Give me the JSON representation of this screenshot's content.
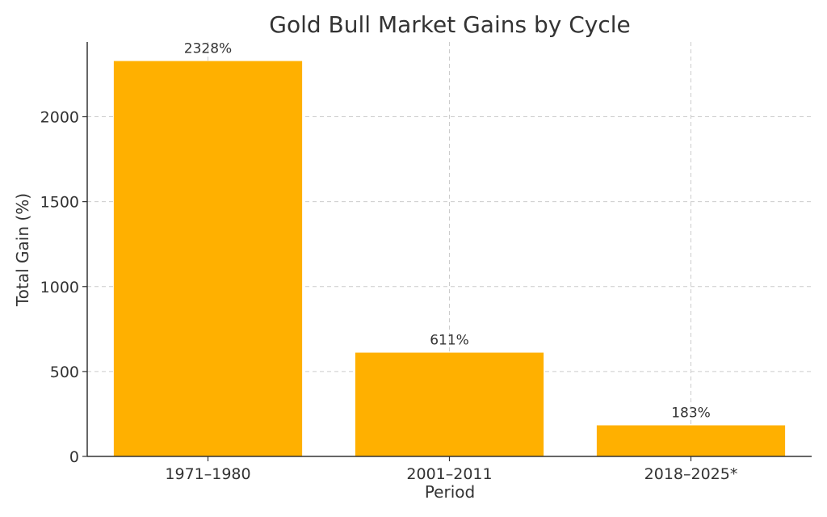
{
  "chart_data": {
    "type": "bar",
    "title": "Gold Bull Market Gains by Cycle",
    "xlabel": "Period",
    "ylabel": "Total Gain (%)",
    "categories": [
      "1971–1980",
      "2001–2011",
      "2018–2025*"
    ],
    "values": [
      2328,
      611,
      183
    ],
    "data_labels": [
      "2328%",
      "611%",
      "183%"
    ],
    "ylim": [
      0,
      2440
    ],
    "yticks": [
      0,
      500,
      1000,
      1500,
      2000
    ],
    "grid": true,
    "bar_color": "#FFB000"
  }
}
